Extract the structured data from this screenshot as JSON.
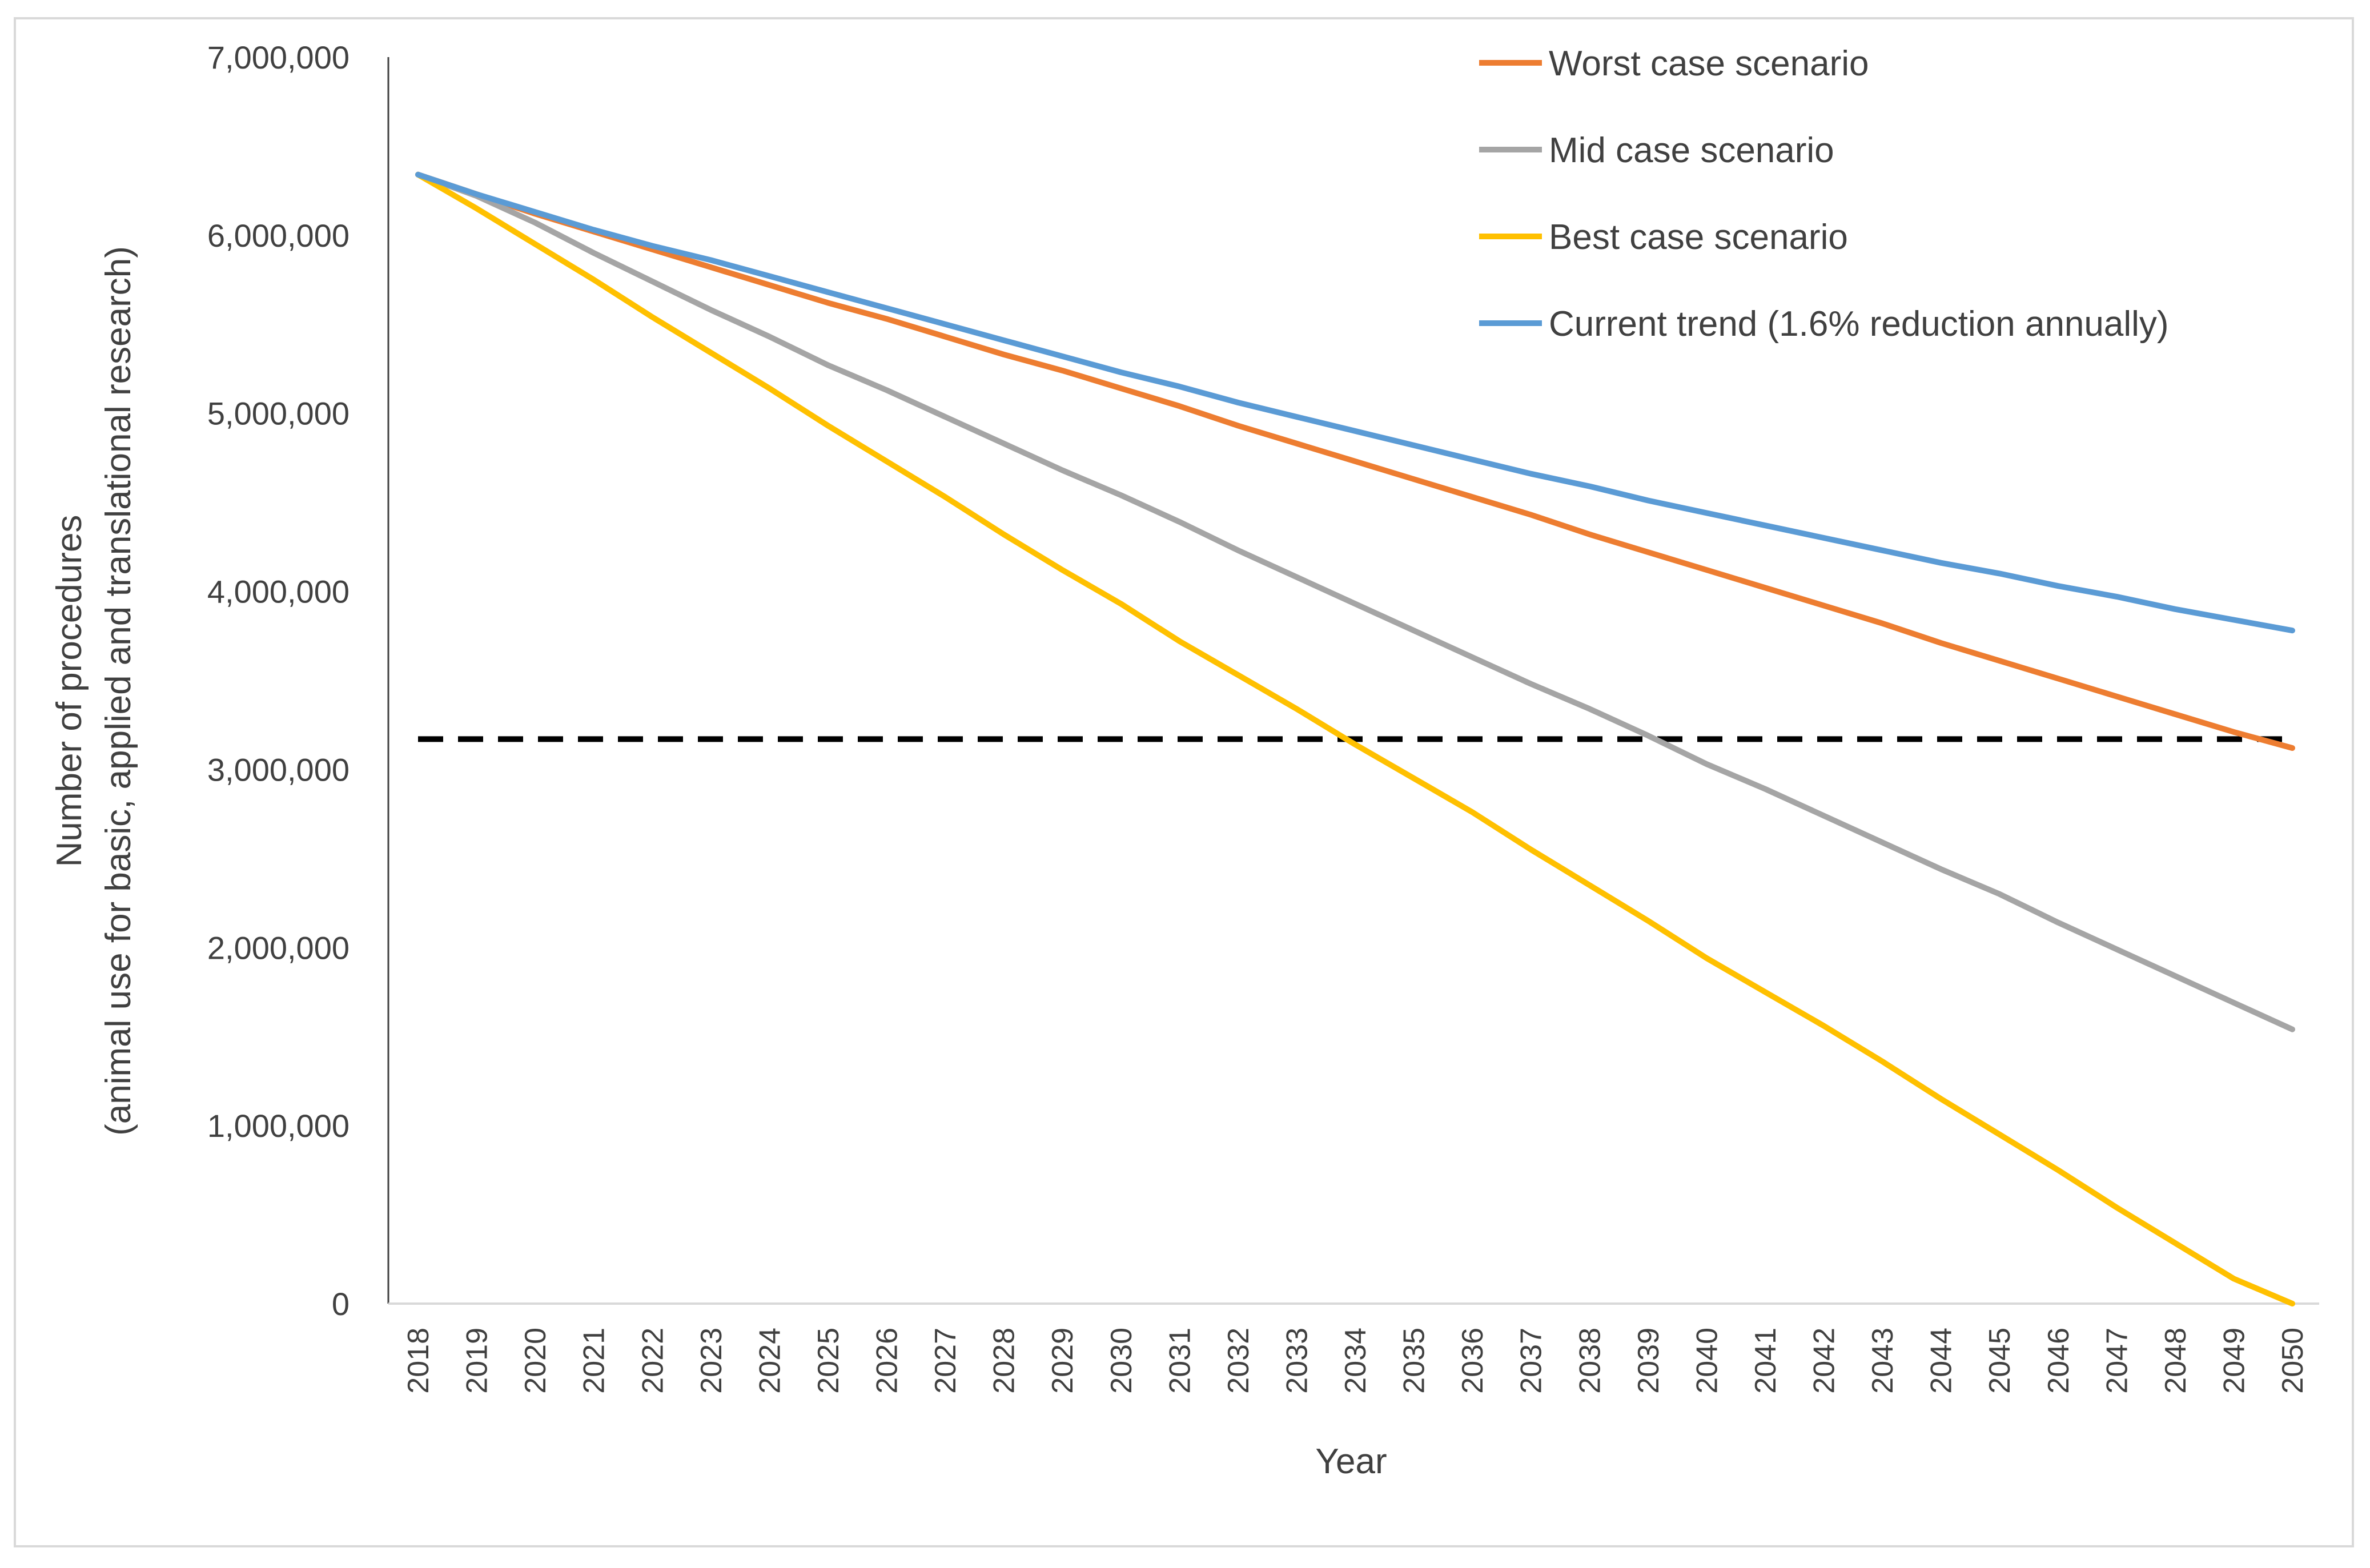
{
  "chart_data": {
    "type": "line",
    "title": "",
    "xlabel": "Year",
    "ylabel_line1": "Number of procedures",
    "ylabel_line2": "(animal use for basic, applied and translational research)",
    "ylim": [
      0,
      7000000
    ],
    "yticks": [
      0,
      1000000,
      2000000,
      3000000,
      4000000,
      5000000,
      6000000,
      7000000
    ],
    "ytick_labels": [
      "0",
      "1,000,000",
      "2,000,000",
      "3,000,000",
      "4,000,000",
      "5,000,000",
      "6,000,000",
      "7,000,000"
    ],
    "categories": [
      "2018",
      "2019",
      "2020",
      "2021",
      "2022",
      "2023",
      "2024",
      "2025",
      "2026",
      "2027",
      "2028",
      "2029",
      "2030",
      "2031",
      "2032",
      "2033",
      "2034",
      "2035",
      "2036",
      "2037",
      "2038",
      "2039",
      "2040",
      "2041",
      "2042",
      "2043",
      "2044",
      "2045",
      "2046",
      "2047",
      "2048",
      "2049",
      "2050"
    ],
    "legend_position": "top-right",
    "reference_line": {
      "value": 3170000,
      "style": "dashed",
      "color": "#000000"
    },
    "series": [
      {
        "name": "Worst case scenario",
        "color": "#ED7D31",
        "values": [
          6340000,
          6230000,
          6120000,
          6020000,
          5920000,
          5820000,
          5720000,
          5620000,
          5530000,
          5430000,
          5330000,
          5240000,
          5140000,
          5040000,
          4930000,
          4830000,
          4730000,
          4630000,
          4530000,
          4430000,
          4320000,
          4220000,
          4120000,
          4020000,
          3920000,
          3820000,
          3710000,
          3610000,
          3510000,
          3410000,
          3310000,
          3210000,
          3120000
        ]
      },
      {
        "name": "Mid case scenario",
        "color": "#A5A5A5",
        "values": [
          6340000,
          6220000,
          6070000,
          5900000,
          5740000,
          5580000,
          5430000,
          5270000,
          5130000,
          4980000,
          4830000,
          4680000,
          4540000,
          4390000,
          4230000,
          4080000,
          3930000,
          3780000,
          3630000,
          3480000,
          3340000,
          3190000,
          3030000,
          2890000,
          2740000,
          2590000,
          2440000,
          2300000,
          2140000,
          1990000,
          1840000,
          1690000,
          1540000
        ]
      },
      {
        "name": "Best case scenario",
        "color": "#FFC000",
        "values": [
          6340000,
          6150000,
          5950000,
          5750000,
          5540000,
          5340000,
          5140000,
          4930000,
          4730000,
          4530000,
          4320000,
          4120000,
          3930000,
          3720000,
          3530000,
          3340000,
          3140000,
          2950000,
          2760000,
          2550000,
          2350000,
          2150000,
          1940000,
          1750000,
          1560000,
          1360000,
          1150000,
          950000,
          750000,
          540000,
          340000,
          140000,
          0
        ]
      },
      {
        "name": "Current trend (1.6% reduction annually)",
        "color": "#5B9BD5",
        "values": [
          6340000,
          6230000,
          6130000,
          6030000,
          5940000,
          5860000,
          5770000,
          5680000,
          5590000,
          5500000,
          5410000,
          5320000,
          5230000,
          5150000,
          5060000,
          4980000,
          4900000,
          4820000,
          4740000,
          4660000,
          4590000,
          4510000,
          4440000,
          4370000,
          4300000,
          4230000,
          4160000,
          4100000,
          4030000,
          3970000,
          3900000,
          3840000,
          3780000
        ]
      }
    ]
  }
}
